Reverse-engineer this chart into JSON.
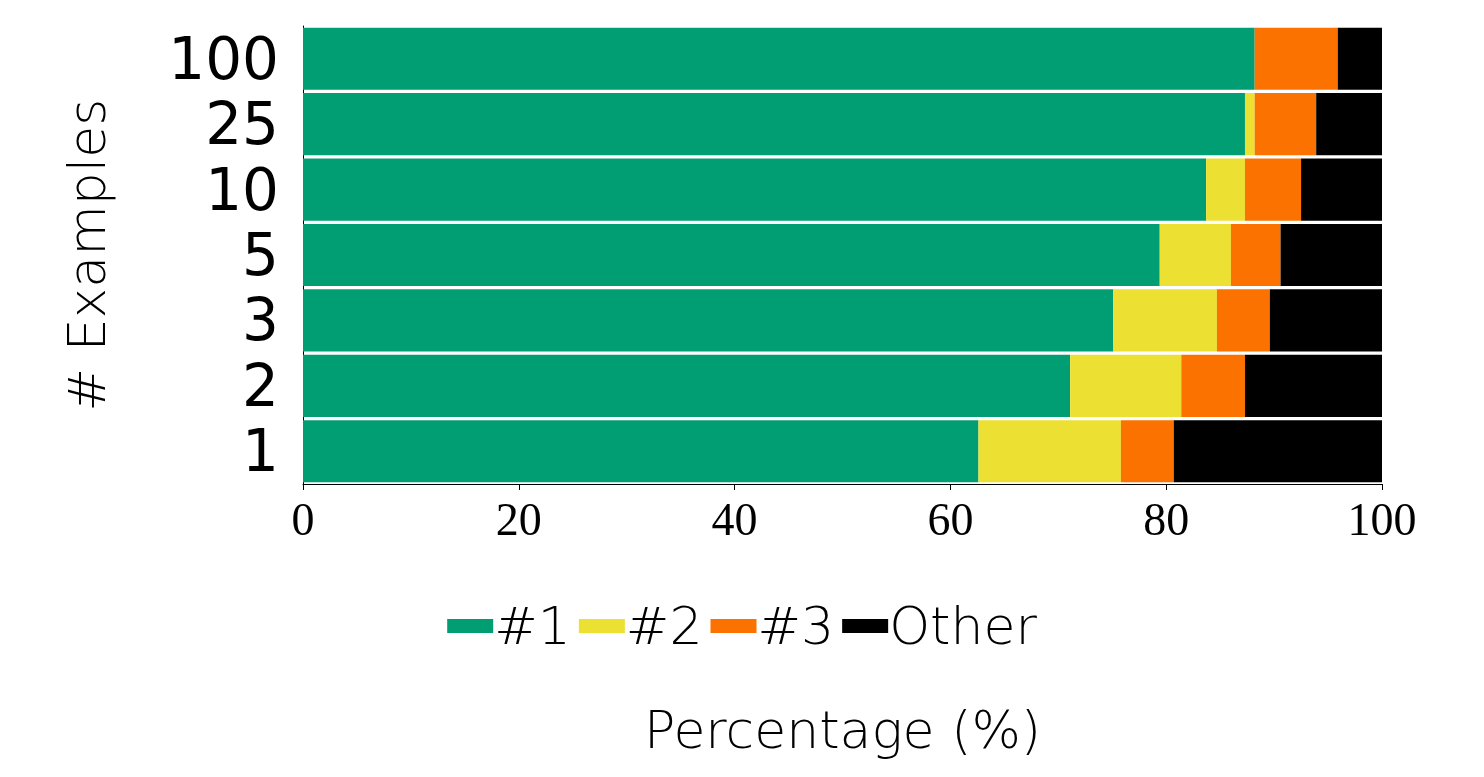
{
  "chart_data": {
    "type": "bar",
    "orientation": "horizontal",
    "stacked": true,
    "xlabel": "Percentage (%)",
    "ylabel": "# Examples",
    "categories": [
      "100",
      "25",
      "10",
      "5",
      "3",
      "2",
      "1"
    ],
    "series": [
      {
        "name": "#1",
        "color": "#029e73",
        "values": [
          88.2,
          87.3,
          83.7,
          79.4,
          75.1,
          71.1,
          62.6
        ]
      },
      {
        "name": "#2",
        "color": "#ece133",
        "values": [
          0,
          0.9,
          3.6,
          6.6,
          9.6,
          10.3,
          13.2
        ]
      },
      {
        "name": "#3",
        "color": "#fb7200",
        "values": [
          7.7,
          5.7,
          5.2,
          4.6,
          4.9,
          5.9,
          4.9
        ]
      },
      {
        "name": "Other",
        "color": "#000000",
        "values": [
          4.1,
          6.1,
          7.5,
          9.4,
          10.4,
          12.7,
          19.3
        ]
      }
    ],
    "xlim": [
      0,
      100
    ],
    "xticks": [
      0,
      20,
      40,
      60,
      80,
      100
    ],
    "grid": false,
    "legend": "bottom"
  }
}
